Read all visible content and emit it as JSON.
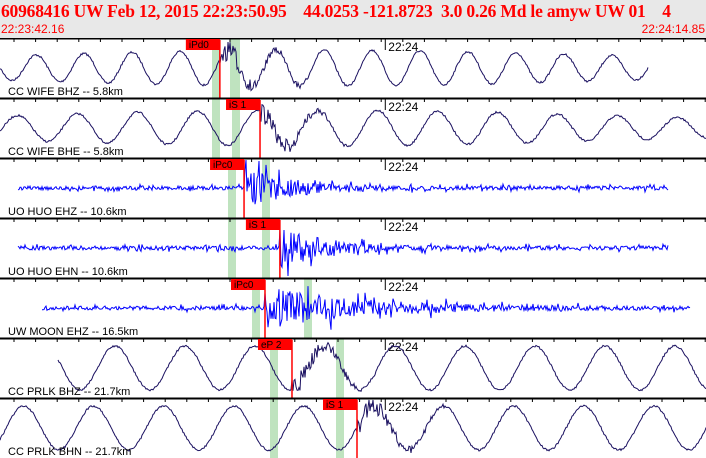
{
  "header": {
    "title": "60968416 UW Feb 12, 2015 22:23:50.95    44.0253 -121.8723  3.0 0.26 Md le amyw UW 01    4",
    "start_time": "22:23:42.16",
    "end_time": "22:24:14.85"
  },
  "colors": {
    "header_text": "#ff0000",
    "pick": "#ff0000",
    "long_period_trace": "#1a1060",
    "short_period_trace": "#0000ff",
    "window_band": "#bfe3bf"
  },
  "minute_label": "22:24",
  "traces": [
    {
      "label": "CC WIFE BHZ -- 5.8km",
      "pick": "iPd0",
      "pick_time": "22:23:52.34",
      "type": "long"
    },
    {
      "label": "CC WIFE BHE -- 5.8km",
      "pick": "iS 1",
      "pick_time": "22:23:54.20",
      "type": "long"
    },
    {
      "label": "UO HUO EHZ -- 10.6km",
      "pick": "iPc0",
      "pick_time": "22:23:53.46",
      "type": "short"
    },
    {
      "label": "UO HUO EHN -- 10.6km",
      "pick": "iS 1",
      "pick_time": "22:23:55.12",
      "type": "short"
    },
    {
      "label": "UW MOON EHZ -- 16.5km",
      "pick": "iPc0",
      "pick_time": "22:23:54.43",
      "type": "short"
    },
    {
      "label": "CC PRLK BHZ -- 21.7km",
      "pick": "eP 2",
      "pick_time": "22:23:55.68",
      "type": "long"
    },
    {
      "label": "CC PRLK BHN -- 21.7km",
      "pick": "iS 1",
      "pick_time": "22:23:58.69",
      "type": "long"
    }
  ]
}
